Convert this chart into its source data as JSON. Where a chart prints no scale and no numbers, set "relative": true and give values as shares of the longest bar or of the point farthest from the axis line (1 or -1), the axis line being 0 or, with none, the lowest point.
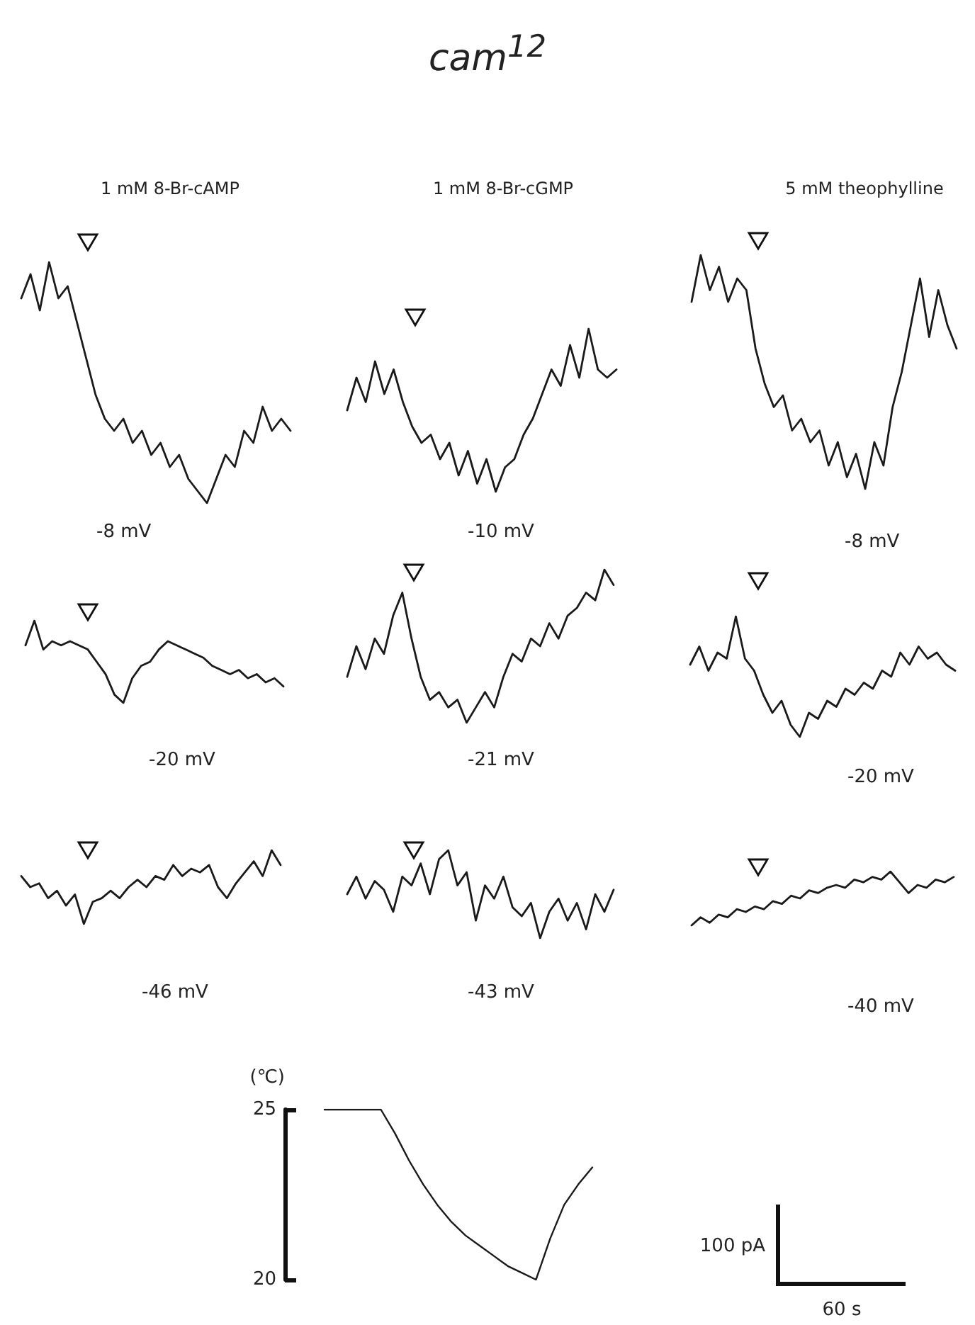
{
  "chart_data": [
    {
      "type": "other",
      "title": "cam$^{12}$"
    },
    {
      "type": "line",
      "title": "1 mM 8-Br-cAMP",
      "annotations": [
        "-8 mV"
      ],
      "relative": true,
      "marker": "none",
      "line_style": "solid",
      "color": "#1a1a1a",
      "categories": [
        null,
        null,
        null,
        null,
        null,
        null,
        null,
        null,
        null,
        null,
        null,
        null,
        null,
        null,
        null,
        null,
        null,
        null,
        null,
        null,
        null,
        null,
        null,
        null,
        null,
        null,
        null,
        null,
        null,
        null
      ],
      "values": [
        0.85,
        0.95,
        0.8,
        1,
        0.85,
        0.9,
        0.75,
        0.6,
        0.45,
        0.35,
        0.3,
        0.35,
        0.25,
        0.3,
        0.2,
        0.25,
        0.15,
        0.2,
        0.1,
        0.05,
        0.0,
        0.1,
        0.2,
        0.15,
        0.3,
        0.25,
        0.4,
        0.3,
        0.35,
        0.3
      ]
    },
    {
      "type": "line",
      "title": "1 mM 8-Br-cGMP",
      "annotations": [
        "-10 mV"
      ],
      "relative": true,
      "marker": "none",
      "line_style": "solid",
      "color": "#1a1a1a",
      "categories": [
        null,
        null,
        null,
        null,
        null,
        null,
        null,
        null,
        null,
        null,
        null,
        null,
        null,
        null,
        null,
        null,
        null,
        null,
        null,
        null,
        null,
        null,
        null,
        null,
        null,
        null,
        null,
        null,
        null,
        null
      ],
      "values": [
        0.5,
        0.7,
        0.55,
        0.8,
        0.6,
        0.75,
        0.55,
        0.4,
        0.3,
        0.35,
        0.2,
        0.3,
        0.1,
        0.25,
        0.05,
        0.2,
        0.0,
        0.15,
        0.2,
        0.35,
        0.45,
        0.6,
        0.75,
        0.65,
        0.9,
        0.7,
        1,
        0.75,
        0.7,
        0.75
      ]
    },
    {
      "type": "line",
      "title": "5 mM theophylline",
      "annotations": [
        "-8 mV"
      ],
      "relative": true,
      "marker": "none",
      "line_style": "solid",
      "color": "#1a1a1a",
      "categories": [
        null,
        null,
        null,
        null,
        null,
        null,
        null,
        null,
        null,
        null,
        null,
        null,
        null,
        null,
        null,
        null,
        null,
        null,
        null,
        null,
        null,
        null,
        null,
        null,
        null,
        null,
        null,
        null,
        null,
        null
      ],
      "values": [
        0.8,
        1,
        0.85,
        0.95,
        0.8,
        0.9,
        0.85,
        0.6,
        0.45,
        0.35,
        0.4,
        0.25,
        0.3,
        0.2,
        0.25,
        0.1,
        0.2,
        0.05,
        0.15,
        0.0,
        0.2,
        0.1,
        0.35,
        0.5,
        0.7,
        0.9,
        0.65,
        0.85,
        0.7,
        0.6
      ]
    },
    {
      "type": "line",
      "annotations": [
        "-20 mV"
      ],
      "relative": true,
      "marker": "none",
      "line_style": "solid",
      "color": "#1a1a1a",
      "categories": [
        null,
        null,
        null,
        null,
        null,
        null,
        null,
        null,
        null,
        null,
        null,
        null,
        null,
        null,
        null,
        null,
        null,
        null,
        null,
        null,
        null,
        null,
        null,
        null,
        null,
        null,
        null,
        null,
        null,
        null
      ],
      "values": [
        0.7,
        1,
        0.65,
        0.75,
        0.7,
        0.75,
        0.7,
        0.65,
        0.5,
        0.35,
        0.1,
        0.0,
        0.3,
        0.45,
        0.5,
        0.65,
        0.75,
        0.7,
        0.65,
        0.6,
        0.55,
        0.45,
        0.4,
        0.35,
        0.4,
        0.3,
        0.35,
        0.25,
        0.3,
        0.2
      ]
    },
    {
      "type": "line",
      "annotations": [
        "-21 mV"
      ],
      "relative": true,
      "marker": "none",
      "line_style": "solid",
      "color": "#1a1a1a",
      "categories": [
        null,
        null,
        null,
        null,
        null,
        null,
        null,
        null,
        null,
        null,
        null,
        null,
        null,
        null,
        null,
        null,
        null,
        null,
        null,
        null,
        null,
        null,
        null,
        null,
        null,
        null,
        null,
        null,
        null,
        null
      ],
      "values": [
        0.3,
        0.5,
        0.35,
        0.55,
        0.45,
        0.7,
        0.85,
        0.55,
        0.3,
        0.15,
        0.2,
        0.1,
        0.15,
        0.0,
        0.1,
        0.2,
        0.1,
        0.3,
        0.45,
        0.4,
        0.55,
        0.5,
        0.65,
        0.55,
        0.7,
        0.75,
        0.85,
        0.8,
        1,
        0.9
      ]
    },
    {
      "type": "line",
      "annotations": [
        "-20 mV"
      ],
      "relative": true,
      "marker": "none",
      "line_style": "solid",
      "color": "#1a1a1a",
      "categories": [
        null,
        null,
        null,
        null,
        null,
        null,
        null,
        null,
        null,
        null,
        null,
        null,
        null,
        null,
        null,
        null,
        null,
        null,
        null,
        null,
        null,
        null,
        null,
        null,
        null,
        null,
        null,
        null,
        null,
        null
      ],
      "values": [
        0.6,
        0.75,
        0.55,
        0.7,
        0.65,
        1,
        0.65,
        0.55,
        0.35,
        0.2,
        0.3,
        0.1,
        0.0,
        0.2,
        0.15,
        0.3,
        0.25,
        0.4,
        0.35,
        0.45,
        0.4,
        0.55,
        0.5,
        0.7,
        0.6,
        0.75,
        0.65,
        0.7,
        0.6,
        0.55
      ]
    },
    {
      "type": "line",
      "annotations": [
        "-46 mV"
      ],
      "relative": true,
      "marker": "none",
      "line_style": "solid",
      "color": "#1a1a1a",
      "categories": [
        null,
        null,
        null,
        null,
        null,
        null,
        null,
        null,
        null,
        null,
        null,
        null,
        null,
        null,
        null,
        null,
        null,
        null,
        null,
        null,
        null,
        null,
        null,
        null,
        null,
        null,
        null,
        null,
        null,
        null
      ],
      "values": [
        0.65,
        0.5,
        0.55,
        0.35,
        0.45,
        0.25,
        0.4,
        0.0,
        0.3,
        0.35,
        0.45,
        0.35,
        0.5,
        0.6,
        0.5,
        0.65,
        0.6,
        0.8,
        0.65,
        0.75,
        0.7,
        0.8,
        0.5,
        0.35,
        0.55,
        0.7,
        0.85,
        0.65,
        1,
        0.8
      ]
    },
    {
      "type": "line",
      "annotations": [
        "-43 mV"
      ],
      "relative": true,
      "marker": "none",
      "line_style": "solid",
      "color": "#1a1a1a",
      "categories": [
        null,
        null,
        null,
        null,
        null,
        null,
        null,
        null,
        null,
        null,
        null,
        null,
        null,
        null,
        null,
        null,
        null,
        null,
        null,
        null,
        null,
        null,
        null,
        null,
        null,
        null,
        null,
        null,
        null,
        null
      ],
      "values": [
        0.5,
        0.7,
        0.45,
        0.65,
        0.55,
        0.3,
        0.7,
        0.6,
        0.85,
        0.5,
        0.9,
        1,
        0.6,
        0.75,
        0.2,
        0.6,
        0.45,
        0.7,
        0.35,
        0.25,
        0.4,
        0.0,
        0.3,
        0.45,
        0.2,
        0.4,
        0.1,
        0.5,
        0.3,
        0.55
      ]
    },
    {
      "type": "line",
      "annotations": [
        "-40 mV"
      ],
      "relative": true,
      "marker": "none",
      "line_style": "solid",
      "color": "#1a1a1a",
      "categories": [
        null,
        null,
        null,
        null,
        null,
        null,
        null,
        null,
        null,
        null,
        null,
        null,
        null,
        null,
        null,
        null,
        null,
        null,
        null,
        null,
        null,
        null,
        null,
        null,
        null,
        null,
        null,
        null,
        null,
        null
      ],
      "values": [
        0.0,
        0.15,
        0.05,
        0.2,
        0.15,
        0.3,
        0.25,
        0.35,
        0.3,
        0.45,
        0.4,
        0.55,
        0.5,
        0.65,
        0.6,
        0.7,
        0.75,
        0.7,
        0.85,
        0.8,
        0.9,
        0.85,
        1,
        0.8,
        0.6,
        0.75,
        0.7,
        0.85,
        0.8,
        0.9
      ]
    },
    {
      "type": "line",
      "ylabel": "(℃)",
      "ylim": [
        20,
        25
      ],
      "yticks": [
        20,
        25
      ],
      "tick_labels": "y",
      "marker": "none",
      "line_style": "solid",
      "color": "#1a1a1a",
      "categories": [
        null,
        null,
        null,
        null,
        null,
        null,
        null,
        null,
        null,
        null,
        null,
        null,
        null,
        null,
        null,
        null,
        null,
        null,
        null,
        null
      ],
      "values": [
        25,
        25,
        25,
        25,
        25,
        24.3,
        23.5,
        22.8,
        22.2,
        21.7,
        21.3,
        21.0,
        20.7,
        20.4,
        20.2,
        20.0,
        21.2,
        22.2,
        22.8,
        23.3
      ]
    },
    {
      "type": "other",
      "annotations": [
        "100 pA",
        "60 s"
      ]
    }
  ]
}
